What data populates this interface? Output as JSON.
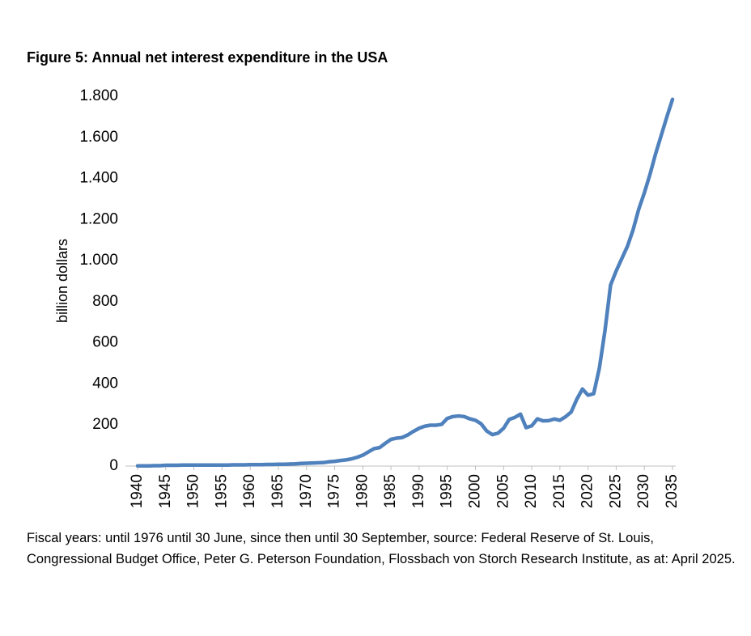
{
  "chart_data": {
    "type": "line",
    "title": "Figure 5: Annual net interest expenditure in the USA",
    "y_label": "billion dollars",
    "note": "Fiscal years: until 1976 until 30 June, since then until 30 September, source: Federal Reserve of St. Louis, Congressional Budget Office, Peter G. Peterson Foundation, Flossbach von Storch Research Institute, as at: April 2025.",
    "x": [
      1940,
      1941,
      1942,
      1943,
      1944,
      1945,
      1946,
      1947,
      1948,
      1949,
      1950,
      1951,
      1952,
      1953,
      1954,
      1955,
      1956,
      1957,
      1958,
      1959,
      1960,
      1961,
      1962,
      1963,
      1964,
      1965,
      1966,
      1967,
      1968,
      1969,
      1970,
      1971,
      1972,
      1973,
      1974,
      1975,
      1976,
      1977,
      1978,
      1979,
      1980,
      1981,
      1982,
      1983,
      1984,
      1985,
      1986,
      1987,
      1988,
      1989,
      1990,
      1991,
      1992,
      1993,
      1994,
      1995,
      1996,
      1997,
      1998,
      1999,
      2000,
      2001,
      2002,
      2003,
      2004,
      2005,
      2006,
      2007,
      2008,
      2009,
      2010,
      2011,
      2012,
      2013,
      2014,
      2015,
      2016,
      2017,
      2018,
      2019,
      2020,
      2021,
      2022,
      2023,
      2024,
      2025,
      2026,
      2027,
      2028,
      2029,
      2030,
      2031,
      2032,
      2033,
      2034,
      2035
    ],
    "series": [
      {
        "name": "Net interest",
        "color": "#4f81bd",
        "values": [
          1,
          1,
          1,
          2,
          2,
          4,
          4,
          4,
          5,
          5,
          5,
          5,
          5,
          5,
          5,
          5,
          5,
          6,
          6,
          6,
          7,
          7,
          7,
          8,
          8,
          9,
          9,
          10,
          11,
          13,
          14,
          15,
          16,
          17,
          21,
          23,
          27,
          30,
          35,
          43,
          53,
          69,
          85,
          90,
          111,
          130,
          136,
          139,
          152,
          169,
          184,
          194,
          199,
          199,
          203,
          232,
          241,
          244,
          241,
          230,
          223,
          206,
          171,
          153,
          160,
          184,
          227,
          237,
          253,
          187,
          196,
          230,
          220,
          221,
          229,
          223,
          240,
          263,
          325,
          375,
          345,
          352,
          475,
          658,
          881,
          950,
          1010,
          1070,
          1150,
          1250,
          1330,
          1420,
          1520,
          1610,
          1700,
          1785
        ]
      }
    ],
    "xlim": [
      1940,
      2035
    ],
    "xticks": [
      1940,
      1945,
      1950,
      1955,
      1960,
      1965,
      1970,
      1975,
      1980,
      1985,
      1990,
      1995,
      2000,
      2005,
      2010,
      2015,
      2020,
      2025,
      2030,
      2035
    ],
    "ylim": [
      0,
      1800
    ],
    "yticks": [
      0,
      200,
      400,
      600,
      800,
      {
        "value": 1000,
        "label": "1.000"
      },
      {
        "value": 1200,
        "label": "1.200"
      },
      {
        "value": 1400,
        "label": "1.400"
      },
      {
        "value": 1600,
        "label": "1.600"
      },
      {
        "value": 1800,
        "label": "1.800"
      }
    ]
  }
}
